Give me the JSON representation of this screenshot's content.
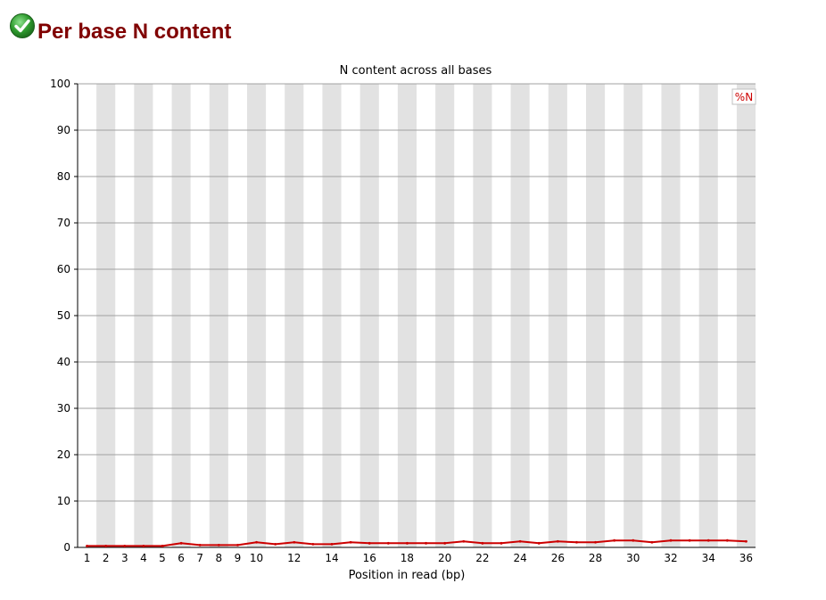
{
  "header": {
    "title": "Per base N content",
    "status_icon": "pass-check-icon",
    "status_color": "#2e9b2e"
  },
  "chart_data": {
    "type": "line",
    "title": "N content across all bases",
    "xlabel": "Position in read (bp)",
    "ylabel": "",
    "ylim": [
      0,
      100
    ],
    "yticks": [
      0,
      10,
      20,
      30,
      40,
      50,
      60,
      70,
      80,
      90,
      100
    ],
    "x": [
      1,
      2,
      3,
      4,
      5,
      6,
      7,
      8,
      9,
      10,
      11,
      12,
      13,
      14,
      15,
      16,
      17,
      18,
      19,
      20,
      21,
      22,
      23,
      24,
      25,
      26,
      27,
      28,
      29,
      30,
      31,
      32,
      33,
      34,
      35,
      36
    ],
    "xtick_labels": [
      "1",
      "2",
      "3",
      "4",
      "5",
      "6",
      "7",
      "8",
      "9",
      "10",
      "",
      "12",
      "",
      "14",
      "",
      "16",
      "",
      "18",
      "",
      "20",
      "",
      "22",
      "",
      "24",
      "",
      "26",
      "",
      "28",
      "",
      "30",
      "",
      "32",
      "",
      "34",
      "",
      "36"
    ],
    "series": [
      {
        "name": "%N",
        "color": "#cc0000",
        "values": [
          0.3,
          0.3,
          0.3,
          0.3,
          0.3,
          0.9,
          0.5,
          0.5,
          0.5,
          1.1,
          0.7,
          1.1,
          0.7,
          0.7,
          1.1,
          0.9,
          0.9,
          0.9,
          0.9,
          0.9,
          1.3,
          0.9,
          0.9,
          1.3,
          0.9,
          1.3,
          1.1,
          1.1,
          1.5,
          1.5,
          1.1,
          1.5,
          1.5,
          1.5,
          1.5,
          1.3
        ]
      }
    ],
    "grid": true,
    "legend": "top-right",
    "band_color": "#e2e2e2",
    "grid_color": "#a0a0a0"
  }
}
